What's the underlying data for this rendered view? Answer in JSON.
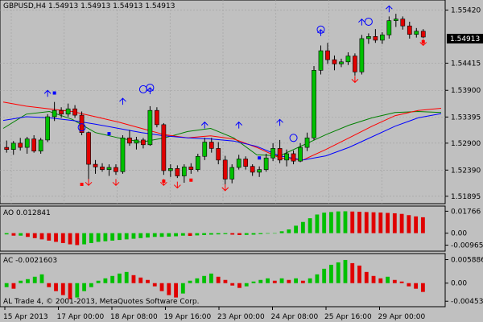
{
  "colors": {
    "background": "#c0c0c0",
    "panel_bg": "#c0c0c0",
    "grid": "#a0a0a0",
    "bull": "#00c000",
    "bear": "#e00000",
    "wick": "#000000",
    "ma_green": "#008000",
    "ma_red": "#ff0000",
    "ma_blue": "#0000ff",
    "price_label_bg": "#000000",
    "price_label_text": "#ffffff",
    "marker_blue": "#0000ff",
    "marker_red": "#ff0000"
  },
  "chart_data": [
    {
      "type": "candlestick",
      "title": "GBPUSD,H4 1.54913 1.54913 1.54913 1.54913",
      "current_price_label": "1.54913",
      "y_tick_labels": [
        "1.55420",
        "1.54415",
        "1.53900",
        "1.53395",
        "1.52900",
        "1.52390",
        "1.51895"
      ],
      "y_ticks": [
        1.5542,
        1.54415,
        1.539,
        1.53395,
        1.529,
        1.5239,
        1.51895
      ],
      "ylim": [
        1.518,
        1.5555
      ],
      "x_tick_labels": [
        "15 Apr 2013",
        "17 Apr 00:00",
        "18 Apr 08:00",
        "19 Apr 16:00",
        "23 Apr 00:00",
        "24 Apr 08:00",
        "25 Apr 16:00",
        "29 Apr 00:00"
      ],
      "candles": [
        {
          "o": 1.5282,
          "h": 1.5295,
          "l": 1.5272,
          "c": 1.5278
        },
        {
          "o": 1.5278,
          "h": 1.5294,
          "l": 1.5268,
          "c": 1.529
        },
        {
          "o": 1.529,
          "h": 1.53,
          "l": 1.5276,
          "c": 1.5282
        },
        {
          "o": 1.5282,
          "h": 1.5302,
          "l": 1.527,
          "c": 1.5298
        },
        {
          "o": 1.5298,
          "h": 1.5305,
          "l": 1.5272,
          "c": 1.5275
        },
        {
          "o": 1.5275,
          "h": 1.53,
          "l": 1.527,
          "c": 1.5296
        },
        {
          "o": 1.5296,
          "h": 1.5345,
          "l": 1.5292,
          "c": 1.534
        },
        {
          "o": 1.534,
          "h": 1.5368,
          "l": 1.5332,
          "c": 1.5352
        },
        {
          "o": 1.5352,
          "h": 1.5358,
          "l": 1.5338,
          "c": 1.5345
        },
        {
          "o": 1.5345,
          "h": 1.5365,
          "l": 1.534,
          "c": 1.5355
        },
        {
          "o": 1.5355,
          "h": 1.5362,
          "l": 1.5338,
          "c": 1.5343
        },
        {
          "o": 1.5343,
          "h": 1.535,
          "l": 1.5305,
          "c": 1.531
        },
        {
          "o": 1.531,
          "h": 1.5312,
          "l": 1.5222,
          "c": 1.525
        },
        {
          "o": 1.525,
          "h": 1.5258,
          "l": 1.5232,
          "c": 1.5245
        },
        {
          "o": 1.5245,
          "h": 1.5252,
          "l": 1.5236,
          "c": 1.524
        },
        {
          "o": 1.524,
          "h": 1.525,
          "l": 1.5228,
          "c": 1.5244
        },
        {
          "o": 1.5244,
          "h": 1.525,
          "l": 1.523,
          "c": 1.5236
        },
        {
          "o": 1.5236,
          "h": 1.5305,
          "l": 1.5232,
          "c": 1.53
        },
        {
          "o": 1.53,
          "h": 1.5315,
          "l": 1.5285,
          "c": 1.529
        },
        {
          "o": 1.529,
          "h": 1.5302,
          "l": 1.5278,
          "c": 1.5296
        },
        {
          "o": 1.5296,
          "h": 1.53,
          "l": 1.528,
          "c": 1.5287
        },
        {
          "o": 1.5287,
          "h": 1.536,
          "l": 1.5285,
          "c": 1.5352
        },
        {
          "o": 1.5352,
          "h": 1.5358,
          "l": 1.532,
          "c": 1.5325
        },
        {
          "o": 1.5325,
          "h": 1.5328,
          "l": 1.523,
          "c": 1.5238
        },
        {
          "o": 1.5238,
          "h": 1.525,
          "l": 1.5226,
          "c": 1.5242
        },
        {
          "o": 1.5242,
          "h": 1.5248,
          "l": 1.5224,
          "c": 1.5228
        },
        {
          "o": 1.5228,
          "h": 1.525,
          "l": 1.5215,
          "c": 1.5245
        },
        {
          "o": 1.5245,
          "h": 1.5252,
          "l": 1.5232,
          "c": 1.524
        },
        {
          "o": 1.524,
          "h": 1.527,
          "l": 1.5236,
          "c": 1.5265
        },
        {
          "o": 1.5265,
          "h": 1.53,
          "l": 1.5258,
          "c": 1.5292
        },
        {
          "o": 1.5292,
          "h": 1.53,
          "l": 1.5272,
          "c": 1.528
        },
        {
          "o": 1.528,
          "h": 1.5292,
          "l": 1.525,
          "c": 1.5258
        },
        {
          "o": 1.5258,
          "h": 1.5266,
          "l": 1.5212,
          "c": 1.5222
        },
        {
          "o": 1.5222,
          "h": 1.525,
          "l": 1.5214,
          "c": 1.5244
        },
        {
          "o": 1.5244,
          "h": 1.5268,
          "l": 1.524,
          "c": 1.526
        },
        {
          "o": 1.526,
          "h": 1.5265,
          "l": 1.524,
          "c": 1.5246
        },
        {
          "o": 1.5246,
          "h": 1.525,
          "l": 1.5228,
          "c": 1.5235
        },
        {
          "o": 1.5235,
          "h": 1.5246,
          "l": 1.5226,
          "c": 1.524
        },
        {
          "o": 1.524,
          "h": 1.527,
          "l": 1.5236,
          "c": 1.5262
        },
        {
          "o": 1.5262,
          "h": 1.529,
          "l": 1.5256,
          "c": 1.528
        },
        {
          "o": 1.528,
          "h": 1.5296,
          "l": 1.5252,
          "c": 1.5258
        },
        {
          "o": 1.5258,
          "h": 1.5278,
          "l": 1.5246,
          "c": 1.527
        },
        {
          "o": 1.527,
          "h": 1.5276,
          "l": 1.525,
          "c": 1.5256
        },
        {
          "o": 1.5256,
          "h": 1.529,
          "l": 1.5254,
          "c": 1.5282
        },
        {
          "o": 1.5282,
          "h": 1.531,
          "l": 1.5275,
          "c": 1.53
        },
        {
          "o": 1.53,
          "h": 1.5436,
          "l": 1.5296,
          "c": 1.5428
        },
        {
          "o": 1.5428,
          "h": 1.5475,
          "l": 1.542,
          "c": 1.5465
        },
        {
          "o": 1.5465,
          "h": 1.548,
          "l": 1.544,
          "c": 1.5448
        },
        {
          "o": 1.5448,
          "h": 1.5456,
          "l": 1.5428,
          "c": 1.544
        },
        {
          "o": 1.544,
          "h": 1.545,
          "l": 1.5434,
          "c": 1.5444
        },
        {
          "o": 1.5444,
          "h": 1.5462,
          "l": 1.5438,
          "c": 1.5455
        },
        {
          "o": 1.5455,
          "h": 1.546,
          "l": 1.5418,
          "c": 1.5425
        },
        {
          "o": 1.5425,
          "h": 1.5495,
          "l": 1.542,
          "c": 1.5488
        },
        {
          "o": 1.5488,
          "h": 1.5498,
          "l": 1.5478,
          "c": 1.5492
        },
        {
          "o": 1.5492,
          "h": 1.5506,
          "l": 1.548,
          "c": 1.5485
        },
        {
          "o": 1.5485,
          "h": 1.55,
          "l": 1.5478,
          "c": 1.5495
        },
        {
          "o": 1.5495,
          "h": 1.553,
          "l": 1.5488,
          "c": 1.5522
        },
        {
          "o": 1.5522,
          "h": 1.5535,
          "l": 1.551,
          "c": 1.5525
        },
        {
          "o": 1.5525,
          "h": 1.553,
          "l": 1.5505,
          "c": 1.5512
        },
        {
          "o": 1.5512,
          "h": 1.552,
          "l": 1.5488,
          "c": 1.5496
        },
        {
          "o": 1.5496,
          "h": 1.5508,
          "l": 1.549,
          "c": 1.5502
        },
        {
          "o": 1.5502,
          "h": 1.5506,
          "l": 1.5489,
          "c": 1.5491
        }
      ],
      "moving_averages": [
        {
          "color": "ma_green",
          "values": [
            1.5318,
            1.5345,
            1.535,
            1.5335,
            1.531,
            1.53,
            1.5292,
            1.53,
            1.5312,
            1.5318,
            1.53,
            1.5268,
            1.5266,
            1.5286,
            1.5306,
            1.5324,
            1.5338,
            1.5348,
            1.535,
            1.5348
          ]
        },
        {
          "color": "ma_red",
          "values": [
            1.5368,
            1.536,
            1.5355,
            1.535,
            1.534,
            1.533,
            1.5318,
            1.5306,
            1.53,
            1.5304,
            1.5298,
            1.5282,
            1.5262,
            1.5258,
            1.5278,
            1.53,
            1.5322,
            1.5342,
            1.5352,
            1.5356
          ]
        },
        {
          "color": "ma_blue",
          "values": [
            1.5333,
            1.534,
            1.5338,
            1.5333,
            1.5326,
            1.5318,
            1.531,
            1.5304,
            1.53,
            1.5298,
            1.5294,
            1.5284,
            1.5266,
            1.5258,
            1.5266,
            1.5282,
            1.5302,
            1.5322,
            1.5338,
            1.5346
          ]
        }
      ]
    },
    {
      "type": "bar",
      "title": "AO 0.012841",
      "y_tick_labels": [
        "0.01766",
        "0.00",
        "-0.009653"
      ],
      "y_ticks": [
        0.01766,
        0,
        -0.009653
      ],
      "ylim": [
        -0.0132,
        0.0205
      ],
      "values": [
        -0.001,
        -0.002,
        -0.002,
        -0.003,
        -0.004,
        -0.005,
        -0.006,
        -0.007,
        -0.008,
        -0.009,
        -0.0096,
        -0.009,
        -0.008,
        -0.007,
        -0.0065,
        -0.006,
        -0.0055,
        -0.005,
        -0.0045,
        -0.004,
        -0.0035,
        -0.003,
        -0.003,
        -0.0028,
        -0.0025,
        -0.002,
        -0.0022,
        -0.0018,
        -0.0015,
        -0.0012,
        -0.001,
        -0.0008,
        -0.0012,
        -0.0015,
        -0.0014,
        -0.0012,
        -0.0008,
        -0.0004,
        0.0,
        0.0015,
        0.003,
        0.006,
        0.009,
        0.012,
        0.015,
        0.0165,
        0.017,
        0.0175,
        0.0176,
        0.0174,
        0.0172,
        0.017,
        0.0168,
        0.0166,
        0.0163,
        0.016,
        0.0155,
        0.0145,
        0.0135,
        0.0128
      ]
    },
    {
      "type": "bar",
      "title": "AC -0.0021603",
      "y_tick_labels": [
        "0.0058868",
        "0.00",
        "-0.004536"
      ],
      "y_ticks": [
        0.0058868,
        0,
        -0.004536
      ],
      "ylim": [
        -0.0055,
        0.007
      ],
      "values": [
        -0.001,
        -0.0014,
        0.0006,
        0.001,
        0.0016,
        0.0022,
        -0.001,
        -0.002,
        -0.003,
        -0.004,
        -0.0036,
        -0.002,
        -0.001,
        0.0006,
        0.0012,
        0.0018,
        0.0024,
        0.0028,
        0.002,
        0.0014,
        0.0008,
        -0.0008,
        -0.002,
        -0.003,
        -0.0036,
        -0.0026,
        0.0006,
        0.0012,
        0.0018,
        0.0024,
        0.0016,
        0.0008,
        -0.0006,
        -0.0012,
        -0.0008,
        0.0004,
        0.0008,
        0.0012,
        0.0006,
        0.0012,
        0.0008,
        0.0012,
        0.0006,
        0.0012,
        0.0022,
        0.0036,
        0.0046,
        0.0052,
        0.0058,
        0.005,
        0.0044,
        0.0028,
        0.0018,
        0.0012,
        0.0016,
        0.0008,
        0.0004,
        -0.0008,
        -0.0014,
        -0.0022
      ]
    }
  ],
  "indicator_labels": {
    "credit": "AL Trade 4, © 2001-2013, MetaQuotes Software Corp."
  }
}
